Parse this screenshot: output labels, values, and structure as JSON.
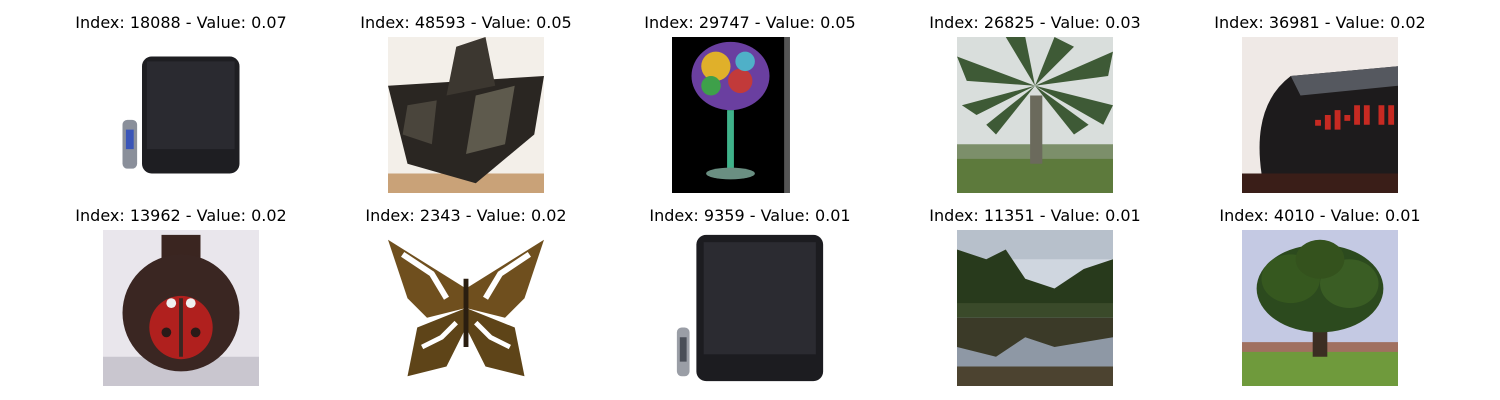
{
  "panels": [
    {
      "title": "Index: 18088 - Value: 0.07",
      "subject": "television-with-remote"
    },
    {
      "title": "Index: 48593 - Value: 0.05",
      "subject": "dark-box-object"
    },
    {
      "title": "Index: 29747 - Value: 0.05",
      "subject": "cocktail-glass-art"
    },
    {
      "title": "Index: 26825 - Value: 0.03",
      "subject": "palm-tree"
    },
    {
      "title": "Index: 36981 - Value: 0.02",
      "subject": "alarm-clock"
    },
    {
      "title": "Index: 13962 - Value: 0.02",
      "subject": "ladybug-pot"
    },
    {
      "title": "Index: 2343 - Value: 0.02",
      "subject": "butterfly"
    },
    {
      "title": "Index: 9359 - Value: 0.01",
      "subject": "television-with-remote"
    },
    {
      "title": "Index: 11351 - Value: 0.01",
      "subject": "forest-lake"
    },
    {
      "title": "Index: 4010 - Value: 0.01",
      "subject": "oak-tree"
    }
  ]
}
